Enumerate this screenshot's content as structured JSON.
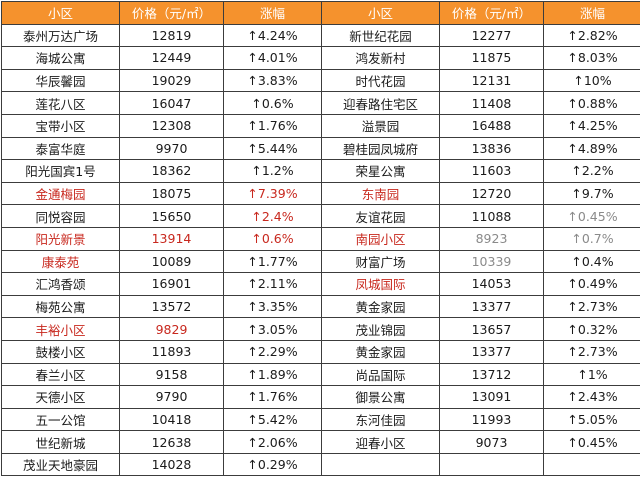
{
  "headers": [
    "小区",
    "价格（元/㎡）",
    "涨幅",
    "小区",
    "价格（元/㎡）",
    "涨幅"
  ],
  "rows": [
    {
      "left": {
        "name": "泰州万达广场",
        "price": "12819",
        "change": "↑4.24%"
      },
      "right": {
        "name": "新世纪花园",
        "price": "12277",
        "change": "↑2.82%"
      }
    },
    {
      "left": {
        "name": "海城公寓",
        "price": "12449",
        "change": "↑4.01%"
      },
      "right": {
        "name": "鸿发新村",
        "price": "11875",
        "change": "↑8.03%"
      }
    },
    {
      "left": {
        "name": "华辰馨园",
        "price": "19029",
        "change": "↑3.83%"
      },
      "right": {
        "name": "时代花园",
        "price": "12131",
        "change": "↑10%"
      }
    },
    {
      "left": {
        "name": "莲花八区",
        "price": "16047",
        "change": "↑0.6%"
      },
      "right": {
        "name": "迎春路住宅区",
        "price": "11408",
        "change": "↑0.88%"
      }
    },
    {
      "left": {
        "name": "宝带小区",
        "price": "12308",
        "change": "↑1.76%"
      },
      "right": {
        "name": "溢景园",
        "price": "16488",
        "change": "↑4.25%"
      }
    },
    {
      "left": {
        "name": "泰富华庭",
        "price": "9970",
        "change": "↑5.44%"
      },
      "right": {
        "name": "碧桂园凤城府",
        "price": "13836",
        "change": "↑4.89%"
      }
    },
    {
      "left": {
        "name": "阳光国宾1号",
        "price": "18362",
        "change": "↑1.2%"
      },
      "right": {
        "name": "荣星公寓",
        "price": "11603",
        "change": "↑2.2%"
      }
    },
    {
      "left": {
        "name": "金通梅园",
        "price": "18075",
        "change": "↑7.39%"
      },
      "right": {
        "name": "东南园",
        "price": "12720",
        "change": "↑9.7%"
      }
    },
    {
      "left": {
        "name": "同悦容园",
        "price": "15650",
        "change": "↑2.4%"
      },
      "right": {
        "name": "友谊花园",
        "price": "11088",
        "change": "↑0.45%"
      }
    },
    {
      "left": {
        "name": "阳光新景",
        "price": "13914",
        "change": "↑0.6%"
      },
      "right": {
        "name": "南园小区",
        "price": "8923",
        "change": "↑0.7%"
      }
    },
    {
      "left": {
        "name": "康泰苑",
        "price": "10089",
        "change": "↑1.77%"
      },
      "right": {
        "name": "财富广场",
        "price": "10339",
        "change": "↑0.4%"
      }
    },
    {
      "left": {
        "name": "汇鸿香颂",
        "price": "16901",
        "change": "↑2.11%"
      },
      "right": {
        "name": "凤城国际",
        "price": "14053",
        "change": "↑0.49%"
      }
    },
    {
      "left": {
        "name": "梅苑公寓",
        "price": "13572",
        "change": "↑3.35%"
      },
      "right": {
        "name": "黄金家园",
        "price": "13377",
        "change": "↑2.73%"
      }
    },
    {
      "left": {
        "name": "丰裕小区",
        "price": "9829",
        "change": "↑3.05%"
      },
      "right": {
        "name": "茂业锦园",
        "price": "13657",
        "change": "↑0.32%"
      }
    },
    {
      "left": {
        "name": "鼓楼小区",
        "price": "11893",
        "change": "↑2.29%"
      },
      "right": {
        "name": "黄金家园",
        "price": "13377",
        "change": "↑2.73%"
      }
    },
    {
      "left": {
        "name": "春兰小区",
        "price": "9158",
        "change": "↑1.89%"
      },
      "right": {
        "name": "尚品国际",
        "price": "13712",
        "change": "↑1%"
      }
    },
    {
      "left": {
        "name": "天德小区",
        "price": "9790",
        "change": "↑1.76%"
      },
      "right": {
        "name": "御景公寓",
        "price": "13091",
        "change": "↑2.43%"
      }
    },
    {
      "left": {
        "name": "五一公馆",
        "price": "10418",
        "change": "↑5.42%"
      },
      "right": {
        "name": "东河佳园",
        "price": "11993",
        "change": "↑5.05%"
      }
    },
    {
      "left": {
        "name": "世纪新城",
        "price": "12638",
        "change": "↑2.06%"
      },
      "right": {
        "name": "迎春小区",
        "price": "9073",
        "change": "↑0.45%"
      }
    },
    {
      "left": {
        "name": "茂业天地豪园",
        "price": "14028",
        "change": "↑0.29%"
      },
      "right": {
        "name": "",
        "price": "",
        "change": ""
      }
    }
  ],
  "colors": {
    "header_bg": "#f5922d",
    "header_text": "#ffffff",
    "highlight_red": "#c8281e",
    "muted_gray": "#8a8a8a",
    "border": "#3c3c3c"
  }
}
